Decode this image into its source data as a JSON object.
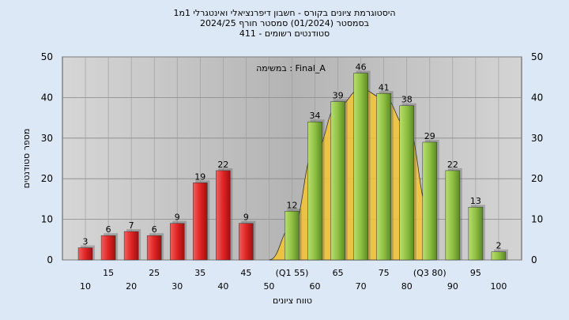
{
  "chart_data": {
    "type": "bar",
    "title_lines": [
      "היסטוגרמת ציונים בקורס - חשבון דיפרנציאלי ואינטגרלי 1מ1",
      "בסמסטר  (01/2024)  סמסטר חורף 2024/25",
      "סטודנטים רשומים - 411"
    ],
    "annotation": "במשימה : Final_A",
    "xlabel": "טווח ציונים",
    "ylabel": "מספר סטודנטים",
    "ylim": [
      0,
      50
    ],
    "yticks": [
      0,
      10,
      20,
      30,
      40,
      50
    ],
    "grid": true,
    "x_tick_labels_upper": [
      "15",
      "25",
      "35",
      "45",
      "(Q1 55)",
      "65",
      "75",
      "(Q3 80)",
      "95"
    ],
    "x_tick_labels_lower": [
      "10",
      "20",
      "30",
      "40",
      "50",
      "60",
      "70",
      "80",
      "90",
      "100"
    ],
    "series": [
      {
        "color": "#e03030",
        "points": [
          {
            "x": 10,
            "y": 3
          },
          {
            "x": 15,
            "y": 6
          },
          {
            "x": 20,
            "y": 7
          },
          {
            "x": 25,
            "y": 6
          },
          {
            "x": 30,
            "y": 9
          },
          {
            "x": 35,
            "y": 19
          },
          {
            "x": 40,
            "y": 22
          },
          {
            "x": 45,
            "y": 9
          }
        ]
      },
      {
        "color": "#8fc043",
        "points": [
          {
            "x": 55,
            "y": 12
          },
          {
            "x": 60,
            "y": 34
          },
          {
            "x": 65,
            "y": 39
          },
          {
            "x": 70,
            "y": 46
          },
          {
            "x": 75,
            "y": 41
          },
          {
            "x": 80,
            "y": 38
          },
          {
            "x": 85,
            "y": 29
          },
          {
            "x": 90,
            "y": 22
          },
          {
            "x": 95,
            "y": 13
          },
          {
            "x": 100,
            "y": 2
          }
        ]
      }
    ],
    "distribution_area": {
      "color": "#f4c430",
      "points": [
        {
          "x": 50,
          "y": 0
        },
        {
          "x": 55,
          "y": 8
        },
        {
          "x": 60,
          "y": 27
        },
        {
          "x": 65,
          "y": 38
        },
        {
          "x": 70,
          "y": 42
        },
        {
          "x": 75,
          "y": 40
        },
        {
          "x": 80,
          "y": 33
        },
        {
          "x": 85,
          "y": 12
        }
      ]
    }
  }
}
